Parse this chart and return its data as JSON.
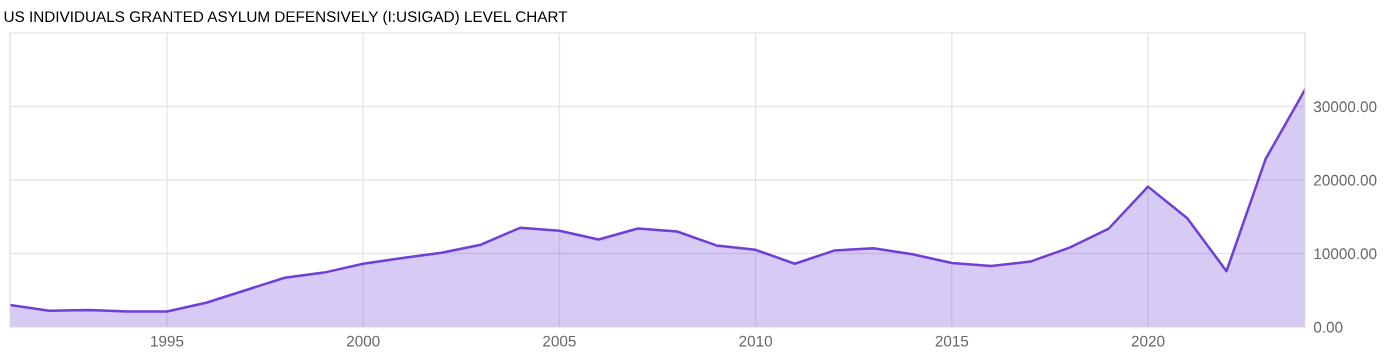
{
  "chart_data": {
    "type": "area",
    "title": "US INDIVIDUALS GRANTED ASYLUM DEFENSIVELY (I:USIGAD) LEVEL CHART",
    "x": [
      1991,
      1992,
      1993,
      1994,
      1995,
      1996,
      1997,
      1998,
      1999,
      2000,
      2001,
      2002,
      2003,
      2004,
      2005,
      2006,
      2007,
      2008,
      2009,
      2010,
      2011,
      2012,
      2013,
      2014,
      2015,
      2016,
      2017,
      2018,
      2019,
      2020,
      2021,
      2022,
      2023,
      2024
    ],
    "series": [
      {
        "color": "#6f3fd6",
        "values": [
          3000,
          2200,
          2300,
          2100,
          2100,
          3300,
          5000,
          6700,
          7400,
          8600,
          9400,
          10100,
          11200,
          13500,
          13100,
          11900,
          13400,
          13000,
          11100,
          10500,
          8600,
          10400,
          10700,
          9900,
          8700,
          8300,
          8900,
          10800,
          13400,
          19100,
          14800,
          7600,
          22900,
          32300
        ]
      }
    ],
    "xlim": [
      1991,
      2024
    ],
    "xticks": [
      1995,
      2000,
      2005,
      2010,
      2015,
      2020
    ],
    "ylim": [
      0,
      40000
    ],
    "yticks": [
      {
        "value": 0,
        "label": "0.00"
      },
      {
        "value": 10000,
        "label": "10000.00"
      },
      {
        "value": 20000,
        "label": "20000.00"
      },
      {
        "value": 30000,
        "label": "30000.00"
      }
    ],
    "grid": true
  }
}
